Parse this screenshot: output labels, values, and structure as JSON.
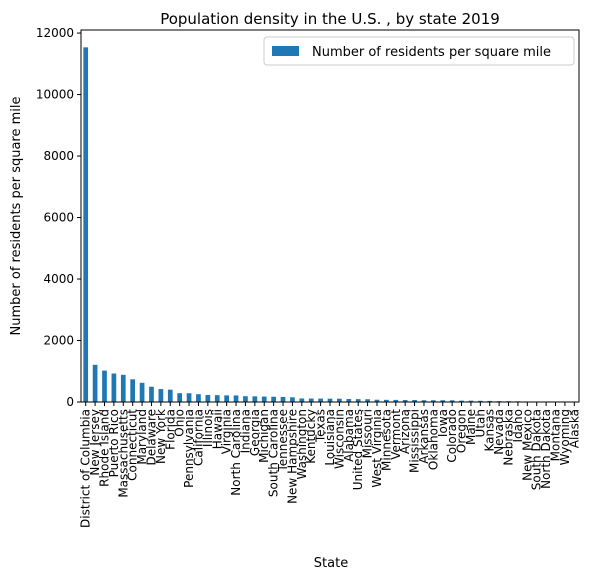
{
  "chart_data": {
    "type": "bar",
    "title": "Population density in the U.S. , by state 2019",
    "xlabel": "State",
    "ylabel": "Number of residents per square mile",
    "ylim": [
      0,
      12100
    ],
    "yticks": [
      0,
      2000,
      4000,
      6000,
      8000,
      10000,
      12000
    ],
    "grid": false,
    "legend_position": "top-right",
    "bar_color": "#1f77b4",
    "categories": [
      "District of Columbia",
      "New Jersey",
      "Rhode Island",
      "Puerto Rico",
      "Massachusetts",
      "Connecticut",
      "Maryland",
      "Delaware",
      "New York",
      "Florida",
      "Ohio",
      "Pennsylvania",
      "California",
      "Illinois",
      "Hawaii",
      "Virginia",
      "North Carolina",
      "Indiana",
      "Georgia",
      "Michigan",
      "South Carolina",
      "Tennessee",
      "New Hampshire",
      "Washington",
      "Kentucky",
      "Texas",
      "Louisiana",
      "Wisconsin",
      "Alabama",
      "United States",
      "Missouri",
      "West Virginia",
      "Minnesota",
      "Vermont",
      "Arizona",
      "Mississippi",
      "Arkansas",
      "Oklahoma",
      "Iowa",
      "Colorado",
      "Oregon",
      "Maine",
      "Utah",
      "Kansas",
      "Nevada",
      "Nebraska",
      "Idaho",
      "New Mexico",
      "South Dakota",
      "North Dakota",
      "Montana",
      "Wyoming",
      "Alaska"
    ],
    "series": [
      {
        "name": "Number of residents per square mile",
        "values": [
          11535.7,
          1210.1,
          1021.4,
          926.3,
          883.7,
          738.1,
          623.8,
          497.1,
          420.3,
          400.6,
          286.5,
          285.5,
          253.6,
          228.8,
          221.7,
          215.7,
          213.5,
          187.9,
          184.6,
          176.9,
          170.3,
          164.9,
          152.1,
          114.9,
          113.3,
          110.3,
          107.3,
          107.2,
          96.8,
          93.0,
          89.4,
          74.2,
          70.6,
          68.0,
          64.0,
          63.6,
          57.4,
          57.0,
          56.8,
          55.7,
          44.1,
          43.6,
          39.0,
          35.6,
          28.1,
          25.3,
          21.7,
          17.3,
          11.7,
          11.0,
          7.4,
          6.0,
          1.3
        ]
      }
    ]
  }
}
